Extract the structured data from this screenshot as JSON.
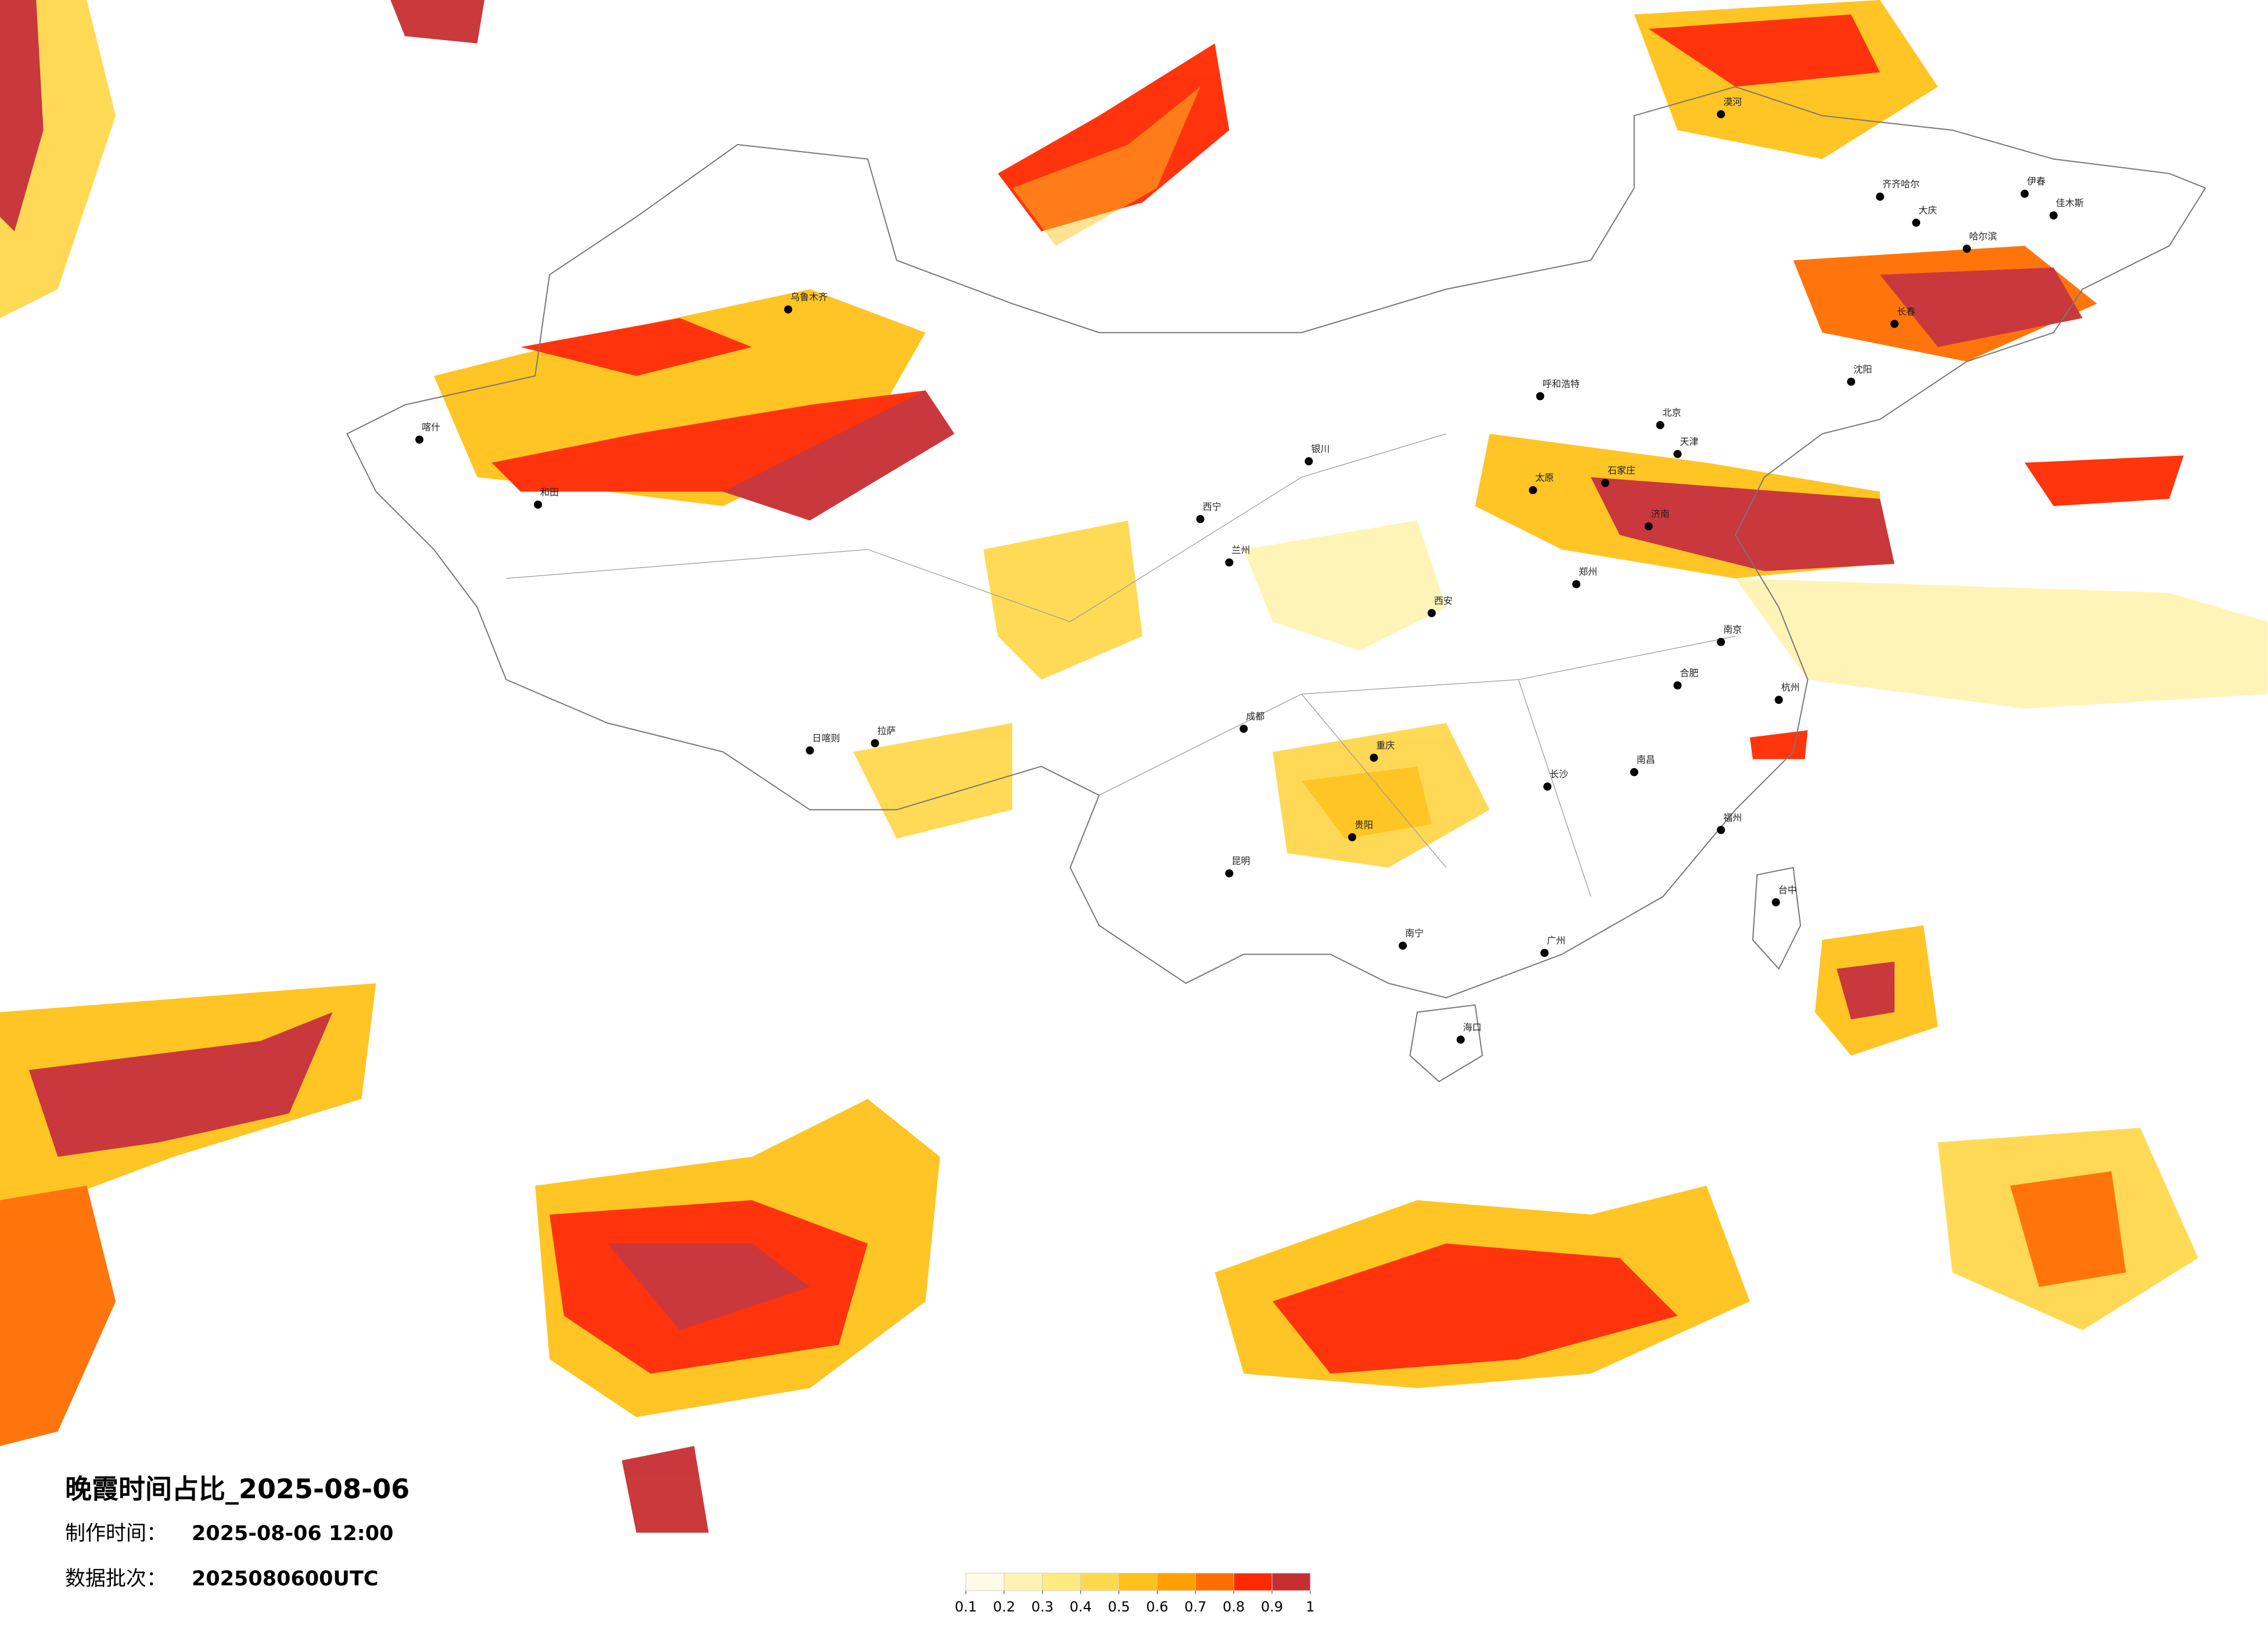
{
  "map": {
    "title": "晚霞时间占比_2025-08-06",
    "made_time_label": "制作时间：",
    "made_time": "2025-08-06 12:00",
    "batch_label": "数据批次：",
    "batch": "2025080600UTC",
    "cities": [
      "北京",
      "天津",
      "石家庄",
      "太原",
      "呼和浩特",
      "郑州",
      "济南",
      "西安",
      "兰州",
      "西宁",
      "银川",
      "乌鲁木齐",
      "喀什",
      "和田",
      "拉萨",
      "日喀则",
      "成都",
      "重庆",
      "贵阳",
      "昆明",
      "南宁",
      "广州",
      "海口",
      "长沙",
      "南昌",
      "福州",
      "台中",
      "杭州",
      "南京",
      "合肥",
      "沈阳",
      "长春",
      "哈尔滨",
      "齐齐哈尔",
      "大庆",
      "漠河",
      "伊春",
      "佳木斯"
    ],
    "colorbar": {
      "colors": [
        "#fffbe6",
        "#fff3b3",
        "#ffeb80",
        "#ffd84d",
        "#ffc21a",
        "#ff9f00",
        "#ff6e00",
        "#ff2a00",
        "#c72e32"
      ],
      "ticks": [
        0.1,
        0.2,
        0.3,
        0.4,
        0.5,
        0.6,
        0.7,
        0.8,
        0.9,
        1
      ]
    }
  }
}
